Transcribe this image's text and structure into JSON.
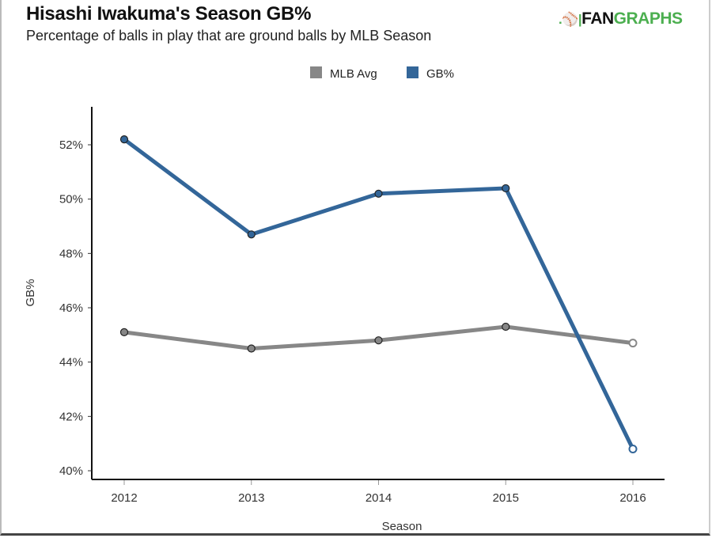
{
  "header": {
    "title": "Hisashi Iwakuma's Season GB%",
    "subtitle": "Percentage of balls in play that are ground balls by MLB Season",
    "logo_dark": "FAN",
    "logo_green": "GRAPHS"
  },
  "chart_data": {
    "type": "line",
    "title": "Hisashi Iwakuma's Season GB%",
    "subtitle": "Percentage of balls in play that are ground balls by MLB Season",
    "xlabel": "Season",
    "ylabel": "GB%",
    "categories": [
      "2012",
      "2013",
      "2014",
      "2015",
      "2016"
    ],
    "ylim": [
      39.7,
      53.4
    ],
    "yticks": [
      40,
      42,
      44,
      46,
      48,
      50,
      52
    ],
    "ytick_labels": [
      "40%",
      "42%",
      "44%",
      "46%",
      "48%",
      "50%",
      "52%"
    ],
    "grid": false,
    "legend_position": "top-center",
    "series": [
      {
        "name": "MLB Avg",
        "color": "#878787",
        "values": [
          45.1,
          44.5,
          44.8,
          45.3,
          44.7
        ],
        "last_point_hollow": true
      },
      {
        "name": "GB%",
        "color": "#336699",
        "values": [
          52.2,
          48.7,
          50.2,
          50.4,
          40.8
        ],
        "last_point_hollow": true
      }
    ]
  }
}
